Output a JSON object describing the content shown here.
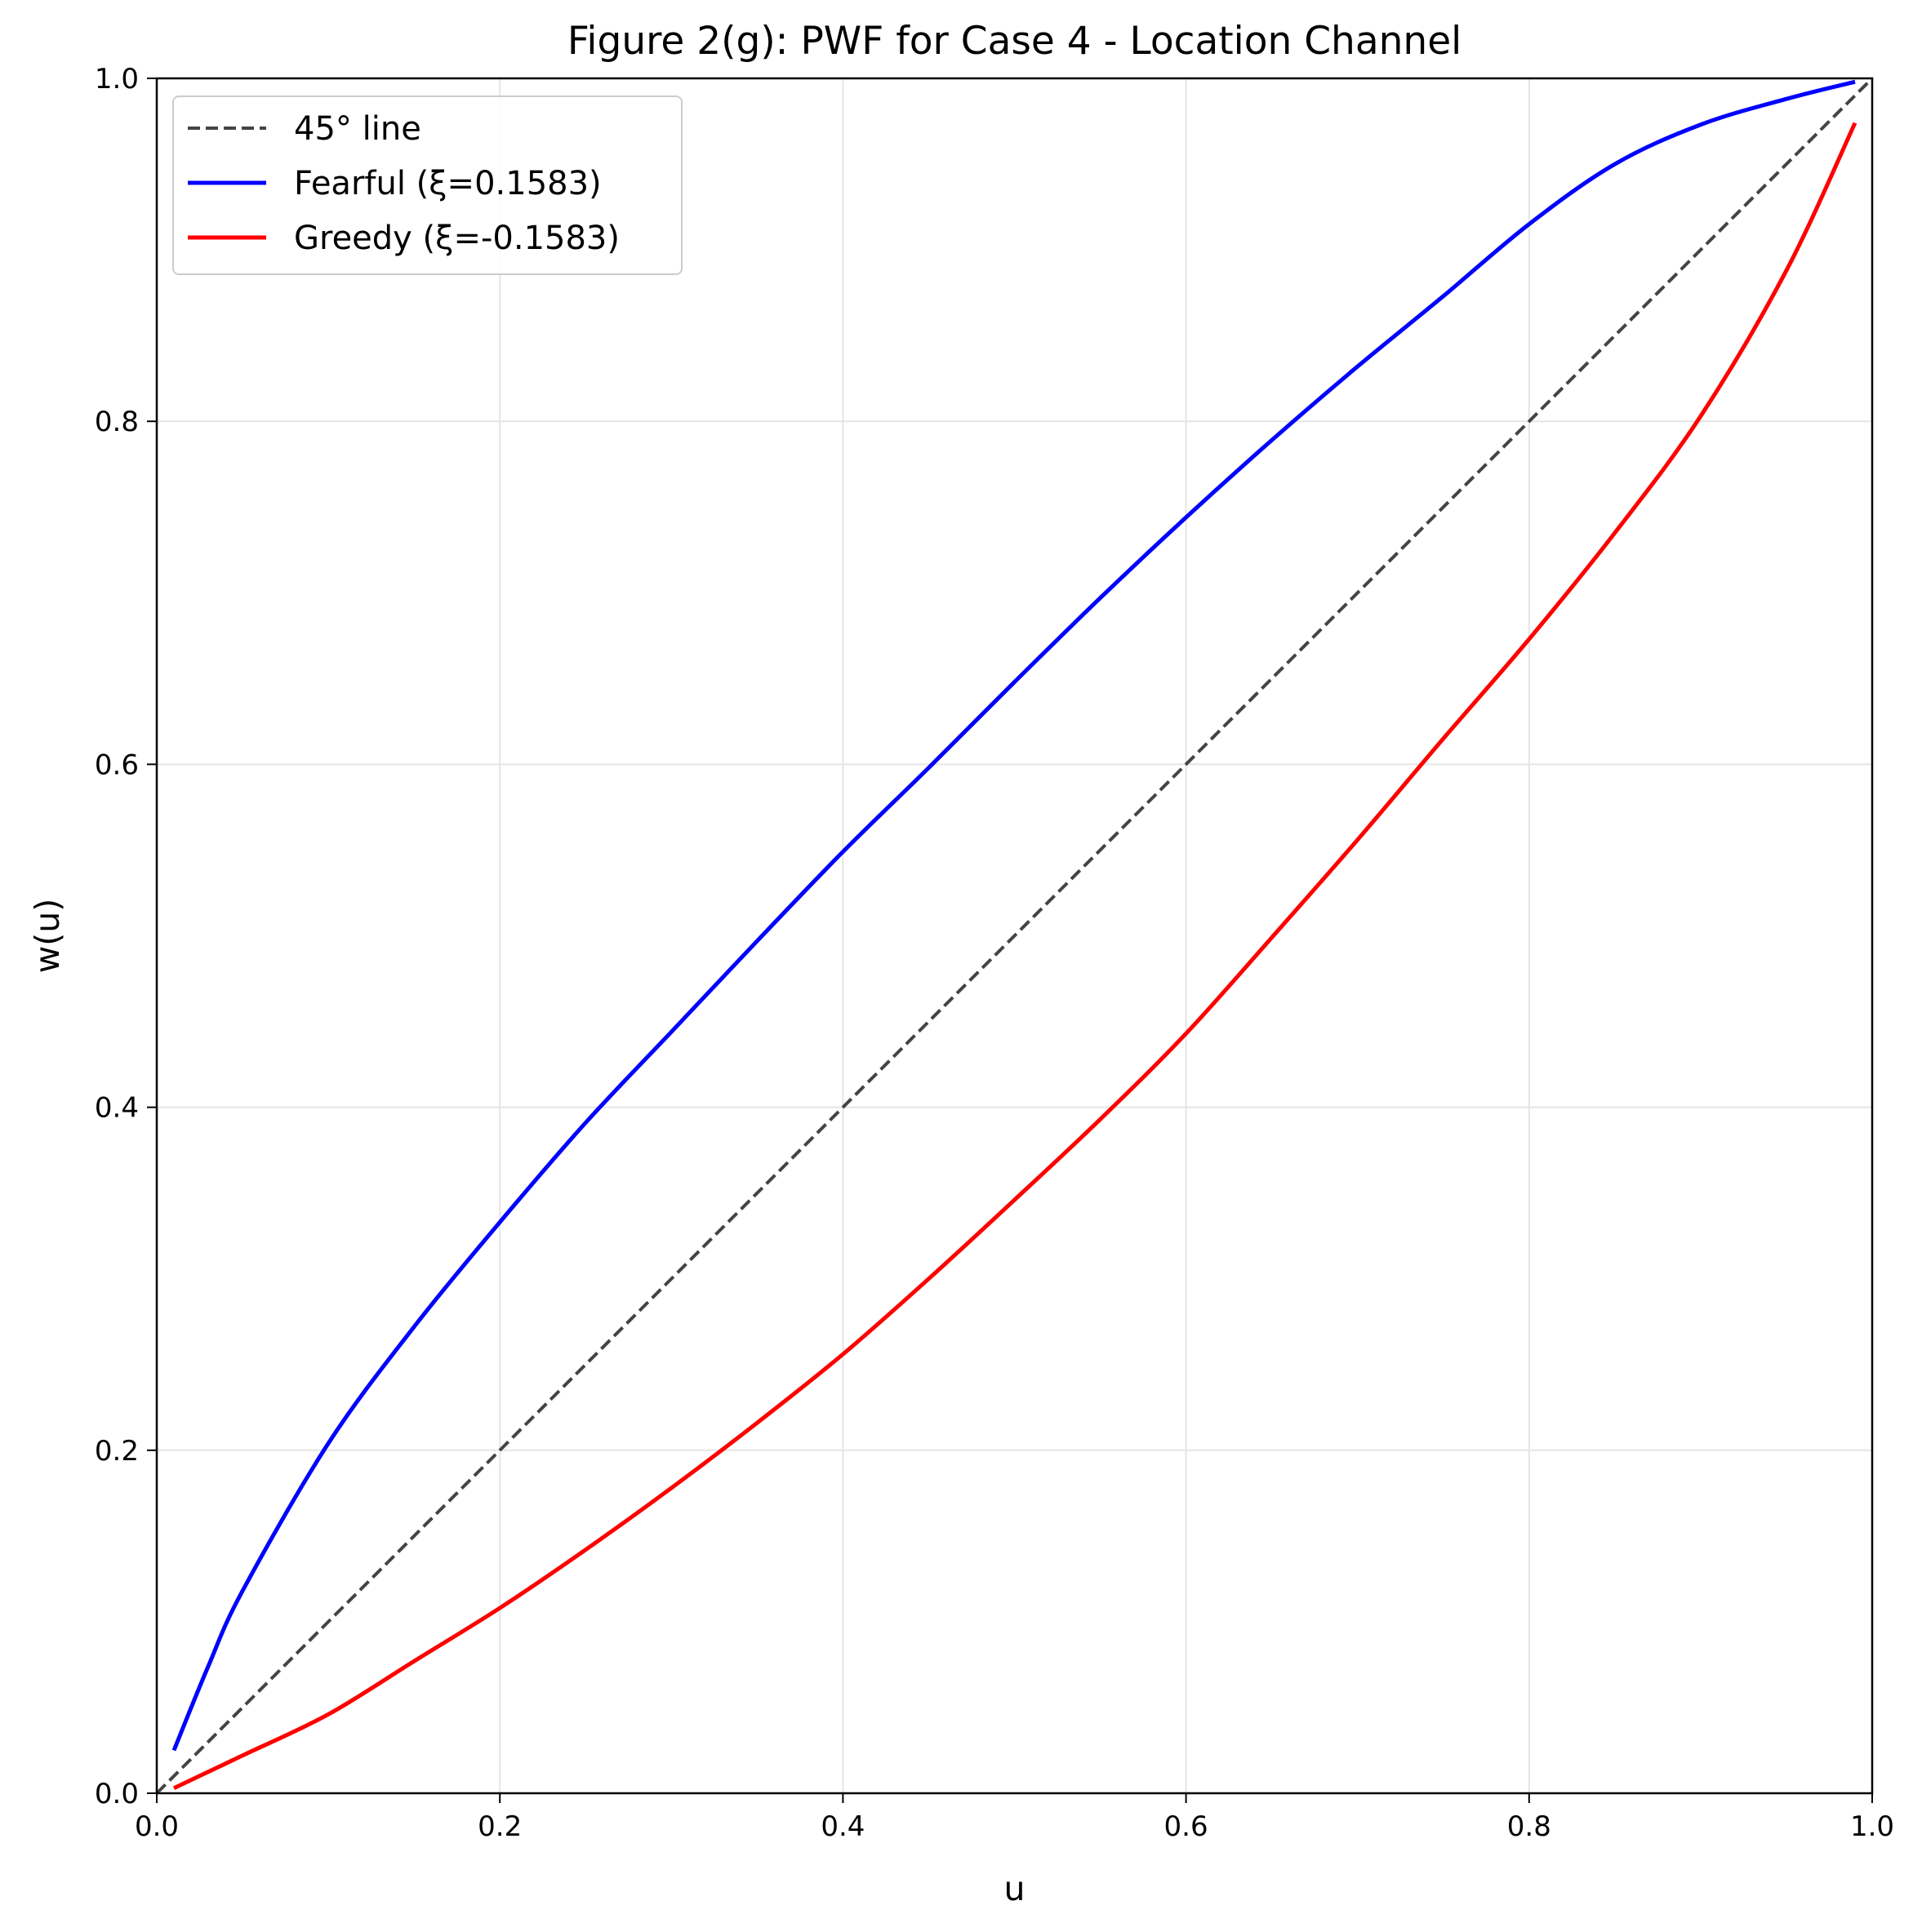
{
  "chart_data": {
    "type": "line",
    "title": "Figure 2(g): PWF for Case 4 - Location Channel",
    "xlabel": "u",
    "ylabel": "w(u)",
    "xlim": [
      0.0,
      1.0
    ],
    "ylim": [
      0.0,
      1.0
    ],
    "xticks": [
      "0.0",
      "0.2",
      "0.4",
      "0.6",
      "0.8",
      "1.0"
    ],
    "yticks": [
      "0.0",
      "0.2",
      "0.4",
      "0.6",
      "0.8",
      "1.0"
    ],
    "grid": true,
    "legend_position": "upper-left",
    "series": [
      {
        "name": "45° line",
        "color": "#444444",
        "style": "dashed",
        "x": [
          0.0,
          1.0
        ],
        "y": [
          0.0,
          1.0
        ]
      },
      {
        "name": "Fearful (ξ=0.1583)",
        "color": "#0000ff",
        "style": "solid",
        "x": [
          0.01,
          0.03,
          0.05,
          0.1,
          0.15,
          0.2,
          0.25,
          0.3,
          0.35,
          0.4,
          0.45,
          0.5,
          0.55,
          0.6,
          0.65,
          0.7,
          0.75,
          0.8,
          0.85,
          0.9,
          0.95,
          0.99
        ],
        "y": [
          0.025,
          0.074,
          0.118,
          0.204,
          0.272,
          0.333,
          0.391,
          0.444,
          0.497,
          0.549,
          0.598,
          0.648,
          0.697,
          0.744,
          0.789,
          0.832,
          0.873,
          0.915,
          0.95,
          0.973,
          0.988,
          0.998
        ]
      },
      {
        "name": "Greedy (ξ=-0.1583)",
        "color": "#ff0000",
        "style": "solid",
        "x": [
          0.01,
          0.05,
          0.1,
          0.15,
          0.2,
          0.25,
          0.3,
          0.35,
          0.4,
          0.45,
          0.5,
          0.55,
          0.6,
          0.65,
          0.7,
          0.75,
          0.8,
          0.85,
          0.9,
          0.95,
          0.99
        ],
        "y": [
          0.003,
          0.022,
          0.046,
          0.077,
          0.108,
          0.142,
          0.178,
          0.216,
          0.256,
          0.3,
          0.346,
          0.393,
          0.443,
          0.499,
          0.556,
          0.615,
          0.673,
          0.735,
          0.803,
          0.888,
          0.974
        ]
      }
    ]
  }
}
